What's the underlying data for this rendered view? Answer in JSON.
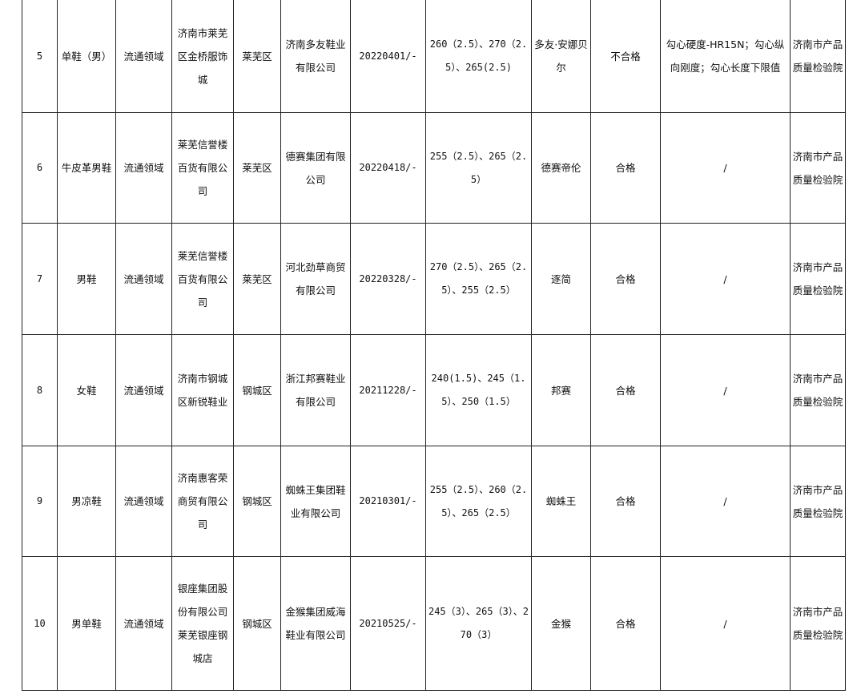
{
  "table": {
    "rows": [
      {
        "no": "5",
        "product": "单鞋（男）",
        "field": "流通领域",
        "seller": "济南市莱芜区金桥服饰城",
        "district": "莱芜区",
        "maker": "济南多友鞋业有限公司",
        "date": "20220401/-",
        "spec": "260（2.5）、270（2.5）、265(2.5)",
        "brand": "多友·安娜贝尔",
        "result": "不合格",
        "items": "勾心硬度-HR15N；勾心纵向刚度；勾心长度下限值",
        "agency": "济南市产品质量检验院"
      },
      {
        "no": "6",
        "product": "牛皮革男鞋",
        "field": "流通领域",
        "seller": "莱芜信誉楼百货有限公司",
        "district": "莱芜区",
        "maker": "德赛集团有限公司",
        "date": "20220418/-",
        "spec": "255（2.5）、265（2.5）",
        "brand": "德赛帝伦",
        "result": "合格",
        "items": "/",
        "agency": "济南市产品质量检验院"
      },
      {
        "no": "7",
        "product": "男鞋",
        "field": "流通领域",
        "seller": "莱芜信誉楼百货有限公司",
        "district": "莱芜区",
        "maker": "河北劲草商贸有限公司",
        "date": "20220328/-",
        "spec": "270（2.5）、265（2.5）、255（2.5）",
        "brand": "逐简",
        "result": "合格",
        "items": "/",
        "agency": "济南市产品质量检验院"
      },
      {
        "no": "8",
        "product": "女鞋",
        "field": "流通领域",
        "seller": "济南市钢城区新锐鞋业",
        "district": "钢城区",
        "maker": "浙江邦赛鞋业有限公司",
        "date": "20211228/-",
        "spec": "240(1.5)、245（1.5）、250（1.5）",
        "brand": "邦赛",
        "result": "合格",
        "items": "/",
        "agency": "济南市产品质量检验院"
      },
      {
        "no": "9",
        "product": "男凉鞋",
        "field": "流通领域",
        "seller": "济南惠客荣商贸有限公司",
        "district": "钢城区",
        "maker": "蜘蛛王集团鞋业有限公司",
        "date": "20210301/-",
        "spec": "255（2.5）、260（2.5）、265（2.5）",
        "brand": "蜘蛛王",
        "result": "合格",
        "items": "/",
        "agency": "济南市产品质量检验院"
      },
      {
        "no": "10",
        "product": "男单鞋",
        "field": "流通领域",
        "seller": "银座集团股份有限公司莱芜银座钢城店",
        "district": "钢城区",
        "maker": "金猴集团威海鞋业有限公司",
        "date": "20210525/-",
        "spec": "245（3）、265（3）、270（3）",
        "brand": "金猴",
        "result": "合格",
        "items": "/",
        "agency": "济南市产品质量检验院"
      }
    ]
  }
}
